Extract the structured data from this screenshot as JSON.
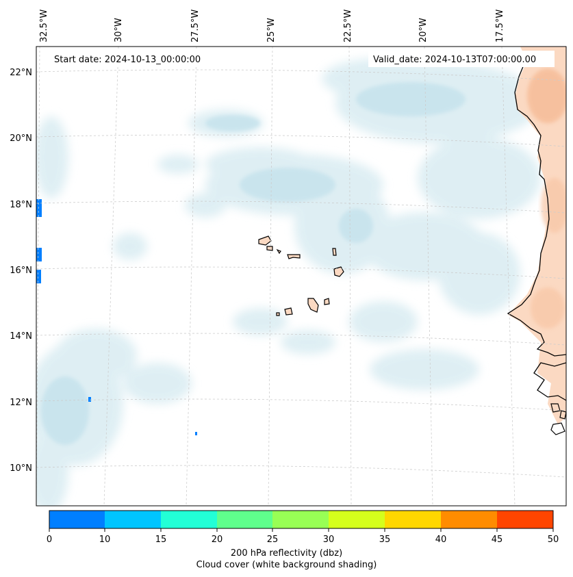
{
  "info": {
    "start_date": "Start date: 2024-10-13_00:00:00",
    "valid_date": "Valid_date: 2024-10-13T07:00:00.00"
  },
  "lon_labels": [
    "32.5°W",
    "30°W",
    "27.5°W",
    "25°W",
    "22.5°W",
    "20°W",
    "17.5°W"
  ],
  "lat_labels": [
    "22°N",
    "20°N",
    "18°N",
    "16°N",
    "14°N",
    "12°N",
    "10°N"
  ],
  "colorbar": {
    "ticks": [
      "0",
      "10",
      "15",
      "20",
      "25",
      "30",
      "35",
      "40",
      "45",
      "50"
    ],
    "colors": [
      "#007fff",
      "#00c5ff",
      "#22ffd6",
      "#5fff8c",
      "#98ff55",
      "#d5ff1c",
      "#ffd700",
      "#ff8c00",
      "#ff4500"
    ],
    "label": "200 hPa reflectivity (dbz)",
    "sublabel": "Cloud cover (white background shading)"
  },
  "colors": {
    "cloud": "#cfe7ef",
    "land": "#f8c8a8",
    "coast": "#000000",
    "grid": "#cccccc"
  }
}
